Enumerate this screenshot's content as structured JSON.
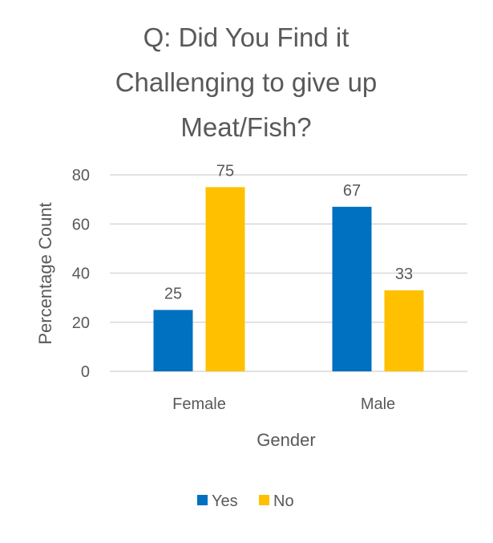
{
  "chart_data": {
    "type": "bar",
    "title": "Q: Did You Find it Challenging to give up Meat/Fish?",
    "title_lines": [
      "Q: Did You Find it",
      "Challenging to give up",
      "Meat/Fish?"
    ],
    "categories": [
      "Female",
      "Male"
    ],
    "series": [
      {
        "name": "Yes",
        "values": [
          25,
          67
        ],
        "color": "#0070C0"
      },
      {
        "name": "No",
        "values": [
          75,
          33
        ],
        "color": "#FFC000"
      }
    ],
    "xlabel": "Gender",
    "ylabel": "Percentage  Count",
    "ylim": [
      0,
      80
    ],
    "yticks": [
      0,
      20,
      40,
      60,
      80
    ],
    "data_labels": true,
    "grid": true,
    "legend_position": "bottom"
  }
}
